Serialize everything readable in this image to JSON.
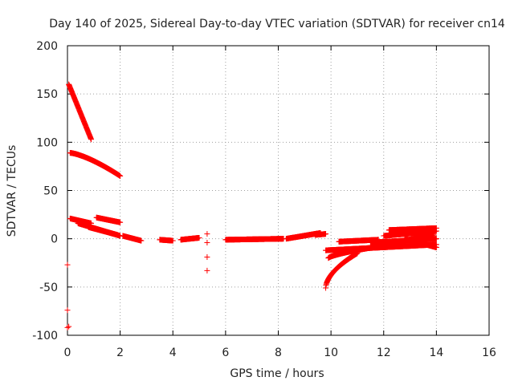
{
  "chart_data": {
    "type": "scatter",
    "title": "Day 140 of 2025, Sidereal Day-to-day VTEC variation (SDTVAR) for receiver cn14",
    "xlabel": "GPS time / hours",
    "ylabel": "SDTVAR / TECUs",
    "xlim": [
      0,
      16
    ],
    "ylim": [
      -100,
      200
    ],
    "xticks": [
      0,
      2,
      4,
      6,
      8,
      10,
      12,
      14,
      16
    ],
    "yticks": [
      -100,
      -50,
      0,
      50,
      100,
      150,
      200
    ],
    "grid": true,
    "marker": "+",
    "color": "#ff0000",
    "segments": [
      {
        "x0": 0.05,
        "x1": 0.9,
        "y0": 160,
        "y1": 103,
        "curve": 1.0
      },
      {
        "x0": 0.1,
        "x1": 2.0,
        "y0": 89,
        "y1": 65,
        "curve": 1.4
      },
      {
        "x0": 0.1,
        "x1": 0.9,
        "y0": 21,
        "y1": 16,
        "curve": 1.0
      },
      {
        "x0": 0.4,
        "x1": 2.0,
        "y0": 16,
        "y1": 3,
        "curve": 1.0
      },
      {
        "x0": 0.8,
        "x1": 1.9,
        "y0": 12,
        "y1": 4,
        "curve": 1.0
      },
      {
        "x0": 1.1,
        "x1": 2.0,
        "y0": 22,
        "y1": 17,
        "curve": 1.0
      },
      {
        "x0": 2.1,
        "x1": 2.8,
        "y0": 3,
        "y1": -2,
        "curve": 1.0
      },
      {
        "x0": 3.5,
        "x1": 4.0,
        "y0": -1,
        "y1": -2,
        "curve": 1.0
      },
      {
        "x0": 4.3,
        "x1": 5.0,
        "y0": -1,
        "y1": 1,
        "curve": 1.0
      },
      {
        "x0": 6.0,
        "x1": 8.2,
        "y0": -1,
        "y1": 0,
        "curve": 1.0
      },
      {
        "x0": 8.3,
        "x1": 9.6,
        "y0": 0,
        "y1": 6,
        "curve": 1.0
      },
      {
        "x0": 9.4,
        "x1": 9.8,
        "y0": 4,
        "y1": 5,
        "curve": 1.0
      },
      {
        "x0": 9.8,
        "x1": 11.0,
        "y0": -51,
        "y1": -15,
        "curve": 0.55
      },
      {
        "x0": 9.9,
        "x1": 11.8,
        "y0": -20,
        "y1": -8,
        "curve": 0.7
      },
      {
        "x0": 9.8,
        "x1": 14.0,
        "y0": -12,
        "y1": -6,
        "curve": 1.0
      },
      {
        "x0": 10.3,
        "x1": 11.8,
        "y0": -3,
        "y1": -1,
        "curve": 1.0
      },
      {
        "x0": 11.5,
        "x1": 14.0,
        "y0": -4,
        "y1": 0,
        "curve": 1.0
      },
      {
        "x0": 11.6,
        "x1": 13.9,
        "y0": -8,
        "y1": 4,
        "curve": 1.0
      },
      {
        "x0": 12.0,
        "x1": 14.0,
        "y0": 3,
        "y1": 8,
        "curve": 1.0
      },
      {
        "x0": 12.2,
        "x1": 14.0,
        "y0": 9,
        "y1": 11,
        "curve": 1.0
      },
      {
        "x0": 12.8,
        "x1": 14.0,
        "y0": 0,
        "y1": -9,
        "curve": 1.0
      }
    ],
    "points": [
      {
        "x": 0.0,
        "y": -27
      },
      {
        "x": 0.0,
        "y": -74
      },
      {
        "x": 0.0,
        "y": -92
      },
      {
        "x": 0.05,
        "y": -91
      },
      {
        "x": 5.3,
        "y": 5
      },
      {
        "x": 5.3,
        "y": -4
      },
      {
        "x": 5.3,
        "y": -19
      },
      {
        "x": 5.3,
        "y": -33
      }
    ]
  }
}
